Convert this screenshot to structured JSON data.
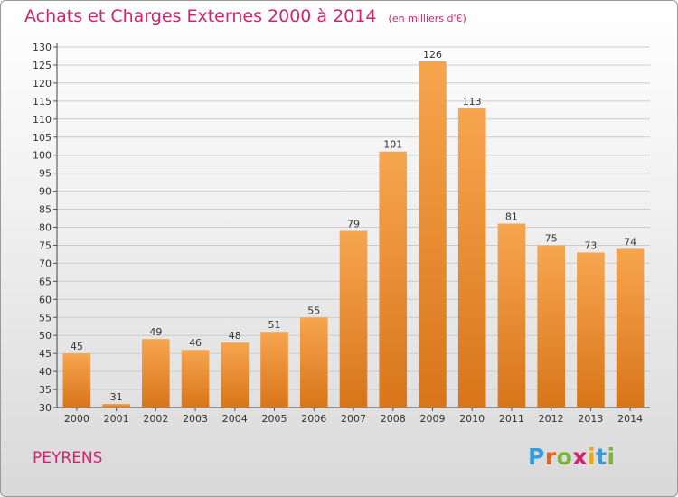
{
  "header": {
    "title": "Achats et Charges Externes 2000 à 2014",
    "unit": "(en milliers d'€)"
  },
  "footer": {
    "commune": "PEYRENS",
    "logo": {
      "letters": [
        "P",
        "r",
        "o",
        "x",
        "i",
        "t",
        "i"
      ],
      "colors": [
        "#3b9ad9",
        "#e8641c",
        "#7ab63a",
        "#d2246e",
        "#e8a817",
        "#3b9ad9",
        "#7ab63a"
      ]
    }
  },
  "colors": {
    "accent": "#d2246e",
    "bar_top": "#f7a550",
    "bar_bottom": "#d87518",
    "grid": "#cccccc"
  },
  "chart_data": {
    "type": "bar",
    "title": "Achats et Charges Externes 2000 à 2014",
    "unit": "(en milliers d'€)",
    "categories": [
      "2000",
      "2001",
      "2002",
      "2003",
      "2004",
      "2005",
      "2006",
      "2007",
      "2008",
      "2009",
      "2010",
      "2011",
      "2012",
      "2013",
      "2014"
    ],
    "values": [
      45,
      31,
      49,
      46,
      48,
      51,
      55,
      79,
      101,
      126,
      113,
      81,
      75,
      73,
      74
    ],
    "ylim": [
      30,
      130
    ],
    "ytick_step": 5,
    "grid": true,
    "legend": "none"
  }
}
